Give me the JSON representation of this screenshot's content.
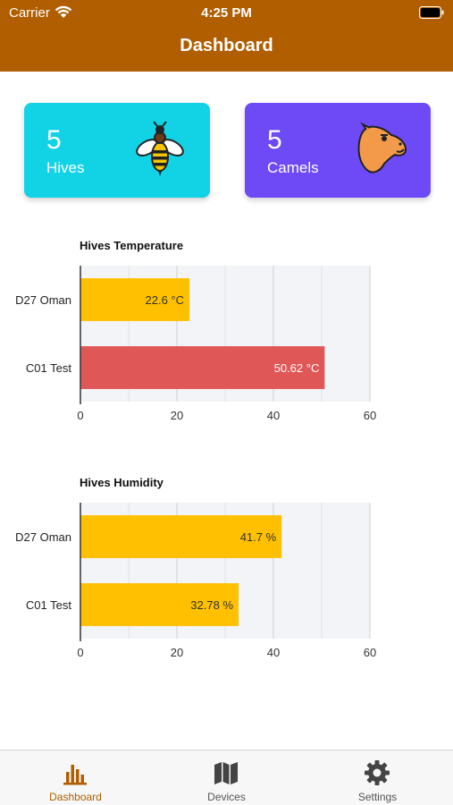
{
  "status_bar": {
    "carrier": "Carrier",
    "time": "4:25 PM"
  },
  "header": {
    "title": "Dashboard",
    "color": "#b05e00"
  },
  "cards": [
    {
      "count": "5",
      "label": "Hives",
      "icon": "bee-icon",
      "color": "#12d2e6"
    },
    {
      "count": "5",
      "label": "Camels",
      "icon": "camel-icon",
      "color": "#6d4af5"
    }
  ],
  "chart_data": [
    {
      "type": "bar",
      "orientation": "horizontal",
      "title": "Hives Temperature",
      "categories": [
        "D27 Oman",
        "C01 Test"
      ],
      "values": [
        22.6,
        50.62
      ],
      "value_labels": [
        "22.6 °C",
        "50.62 °C"
      ],
      "bar_colors": [
        "#fec000",
        "#e05757"
      ],
      "xlim": [
        0,
        60
      ],
      "xticks": [
        "0",
        "20",
        "40",
        "60"
      ],
      "grid": true
    },
    {
      "type": "bar",
      "orientation": "horizontal",
      "title": "Hives Humidity",
      "categories": [
        "D27 Oman",
        "C01 Test"
      ],
      "values": [
        41.7,
        32.78
      ],
      "value_labels": [
        "41.7 %",
        "32.78 %"
      ],
      "bar_colors": [
        "#fec000",
        "#fec000"
      ],
      "xlim": [
        0,
        60
      ],
      "xticks": [
        "0",
        "20",
        "40",
        "60"
      ],
      "grid": true
    }
  ],
  "tabbar": {
    "active_color": "#b05e00",
    "items": [
      {
        "label": "Dashboard",
        "icon": "bar-chart-icon",
        "active": true
      },
      {
        "label": "Devices",
        "icon": "map-icon",
        "active": false
      },
      {
        "label": "Settings",
        "icon": "gear-icon",
        "active": false
      }
    ]
  }
}
